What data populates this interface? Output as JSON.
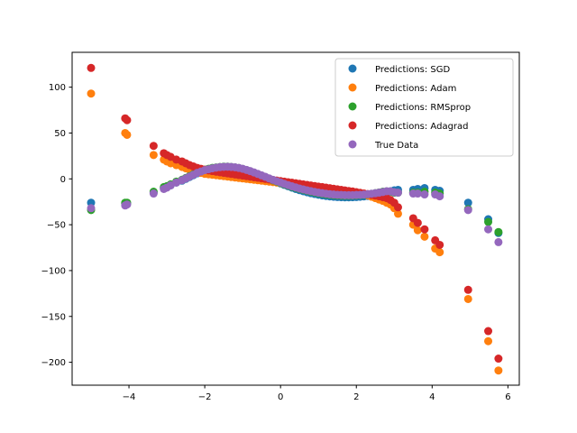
{
  "chart_data": {
    "type": "scatter",
    "title": "",
    "xlabel": "",
    "ylabel": "",
    "xlim": [
      -5.5,
      6.3
    ],
    "ylim": [
      -225,
      138
    ],
    "xticks": [
      -4,
      -2,
      0,
      2,
      4,
      6
    ],
    "xtick_labels": [
      "−4",
      "−2",
      "0",
      "2",
      "4",
      "6"
    ],
    "yticks": [
      100,
      50,
      0,
      -50,
      -100,
      -150,
      -200
    ],
    "ytick_labels": [
      "100",
      "50",
      "0",
      "−50",
      "−100",
      "−150",
      "−200"
    ],
    "grid": false,
    "legend_position": "top-right",
    "x": [
      -5.0,
      -4.1,
      -4.05,
      -3.35,
      -3.08,
      -3.0,
      -2.9,
      -2.75,
      -2.6,
      -2.5,
      -2.4,
      -2.3,
      -2.2,
      -2.1,
      -2.0,
      -1.9,
      -1.8,
      -1.7,
      -1.6,
      -1.5,
      -1.4,
      -1.3,
      -1.2,
      -1.1,
      -1.0,
      -0.9,
      -0.8,
      -0.7,
      -0.6,
      -0.5,
      -0.4,
      -0.3,
      -0.2,
      -0.1,
      0.0,
      0.1,
      0.2,
      0.3,
      0.4,
      0.5,
      0.6,
      0.7,
      0.8,
      0.9,
      1.0,
      1.1,
      1.2,
      1.3,
      1.4,
      1.5,
      1.6,
      1.7,
      1.8,
      1.9,
      2.0,
      2.1,
      2.2,
      2.3,
      2.4,
      2.5,
      2.6,
      2.7,
      2.8,
      2.9,
      3.0,
      3.1,
      3.5,
      3.62,
      3.8,
      4.08,
      4.2,
      4.95,
      5.48,
      5.75
    ],
    "series": [
      {
        "name": "Predictions: SGD",
        "color": "#1f77b4",
        "values": [
          -26,
          -27,
          -27,
          -15,
          -10,
          -9,
          -7,
          -4,
          -2,
          0,
          2,
          4,
          6,
          8,
          9.5,
          10.5,
          11.5,
          12,
          12.5,
          13,
          13,
          12.8,
          12.3,
          11.5,
          10.5,
          9.2,
          7.8,
          6.2,
          4.6,
          3,
          1.4,
          -0.3,
          -2,
          -3.5,
          -5,
          -6.5,
          -8,
          -9.5,
          -11,
          -12.3,
          -13.5,
          -14.6,
          -15.6,
          -16.5,
          -17.3,
          -18,
          -18.6,
          -19.1,
          -19.5,
          -19.8,
          -20,
          -20.1,
          -20.1,
          -20,
          -19.8,
          -19.5,
          -19.1,
          -18.6,
          -18,
          -17.3,
          -16.5,
          -15.6,
          -14.6,
          -13.5,
          -12.5,
          -12,
          -12,
          -11,
          -10,
          -12,
          -13,
          -26,
          -44,
          -59
        ]
      },
      {
        "name": "Predictions: Adam",
        "color": "#ff7f0e",
        "values": [
          93,
          50,
          48,
          26,
          21,
          19,
          17,
          15,
          13,
          11.5,
          10,
          8.5,
          7.5,
          6.5,
          5.5,
          5,
          4.5,
          4,
          3.5,
          3,
          2.5,
          2,
          1.5,
          1,
          0.5,
          0,
          -0.5,
          -1,
          -1.5,
          -2,
          -2.5,
          -3,
          -3.5,
          -4,
          -4.5,
          -5,
          -5.5,
          -6,
          -6.5,
          -7,
          -7.5,
          -8,
          -8.5,
          -9,
          -9.5,
          -10,
          -10.5,
          -11,
          -11.5,
          -12,
          -12.5,
          -13,
          -13.5,
          -14,
          -15,
          -16,
          -17,
          -18,
          -19.5,
          -21,
          -22.5,
          -24,
          -26,
          -28,
          -32,
          -38,
          -50,
          -56,
          -63,
          -76,
          -80,
          -131,
          -177,
          -209
        ]
      },
      {
        "name": "Predictions: RMSprop",
        "color": "#2ca02c",
        "values": [
          -34,
          -26,
          -26,
          -14,
          -9,
          -8,
          -6,
          -3,
          -1,
          1,
          3,
          5,
          7,
          8.5,
          10,
          11,
          12,
          12.5,
          13,
          13.3,
          13.3,
          13,
          12.5,
          11.8,
          10.8,
          9.6,
          8.2,
          6.6,
          5,
          3.4,
          1.8,
          0,
          -1.6,
          -3,
          -4.5,
          -6,
          -7.3,
          -8.6,
          -9.8,
          -11,
          -12,
          -13,
          -14,
          -14.8,
          -15.6,
          -16.3,
          -16.9,
          -17.4,
          -17.8,
          -18.1,
          -18.3,
          -18.4,
          -18.4,
          -18.3,
          -18.1,
          -17.8,
          -17.4,
          -16.9,
          -16.3,
          -15.6,
          -14.8,
          -14,
          -13.6,
          -14,
          -15,
          -15,
          -15,
          -15,
          -14,
          -15,
          -16,
          -33,
          -47,
          -58
        ]
      },
      {
        "name": "Predictions: Adagrad",
        "color": "#d62728",
        "values": [
          121,
          66,
          64,
          36,
          28,
          26,
          24,
          21,
          19,
          17,
          15,
          13.5,
          12,
          11,
          10,
          9.2,
          8.5,
          7.8,
          7.2,
          6.6,
          6,
          5.4,
          4.8,
          4.2,
          3.6,
          3,
          2.4,
          1.8,
          1.2,
          0.6,
          0,
          -0.6,
          -1.2,
          -1.8,
          -2.4,
          -3,
          -3.6,
          -4.2,
          -4.8,
          -5.4,
          -6,
          -6.6,
          -7.2,
          -7.8,
          -8.4,
          -9,
          -9.6,
          -10.2,
          -10.8,
          -11.4,
          -12,
          -12.6,
          -13.2,
          -13.8,
          -14.5,
          -15.2,
          -15.9,
          -16.6,
          -17.4,
          -18.2,
          -19,
          -20,
          -21,
          -23,
          -26,
          -31,
          -43,
          -48,
          -55,
          -67,
          -72,
          -121,
          -166,
          -196
        ]
      },
      {
        "name": "True Data",
        "color": "#9467bd",
        "values": [
          -32,
          -29,
          -28,
          -16,
          -11,
          -9.5,
          -7,
          -4,
          -1.5,
          0.5,
          2.5,
          4.5,
          6.5,
          8,
          9.5,
          10.5,
          11.5,
          12.2,
          12.8,
          13.1,
          13.2,
          13,
          12.6,
          11.9,
          11,
          9.8,
          8.5,
          7,
          5.4,
          3.8,
          2.2,
          0.5,
          -1.1,
          -2.6,
          -4,
          -5.5,
          -6.8,
          -8.1,
          -9.3,
          -10.5,
          -11.5,
          -12.5,
          -13.4,
          -14.2,
          -15,
          -15.6,
          -16.2,
          -16.7,
          -17.1,
          -17.4,
          -17.6,
          -17.8,
          -17.8,
          -17.8,
          -17.6,
          -17.4,
          -17.1,
          -16.7,
          -16.2,
          -15.6,
          -15,
          -14.3,
          -13.5,
          -13.6,
          -14.5,
          -15,
          -16,
          -16,
          -17,
          -17,
          -19,
          -34,
          -55,
          -69
        ]
      }
    ]
  }
}
